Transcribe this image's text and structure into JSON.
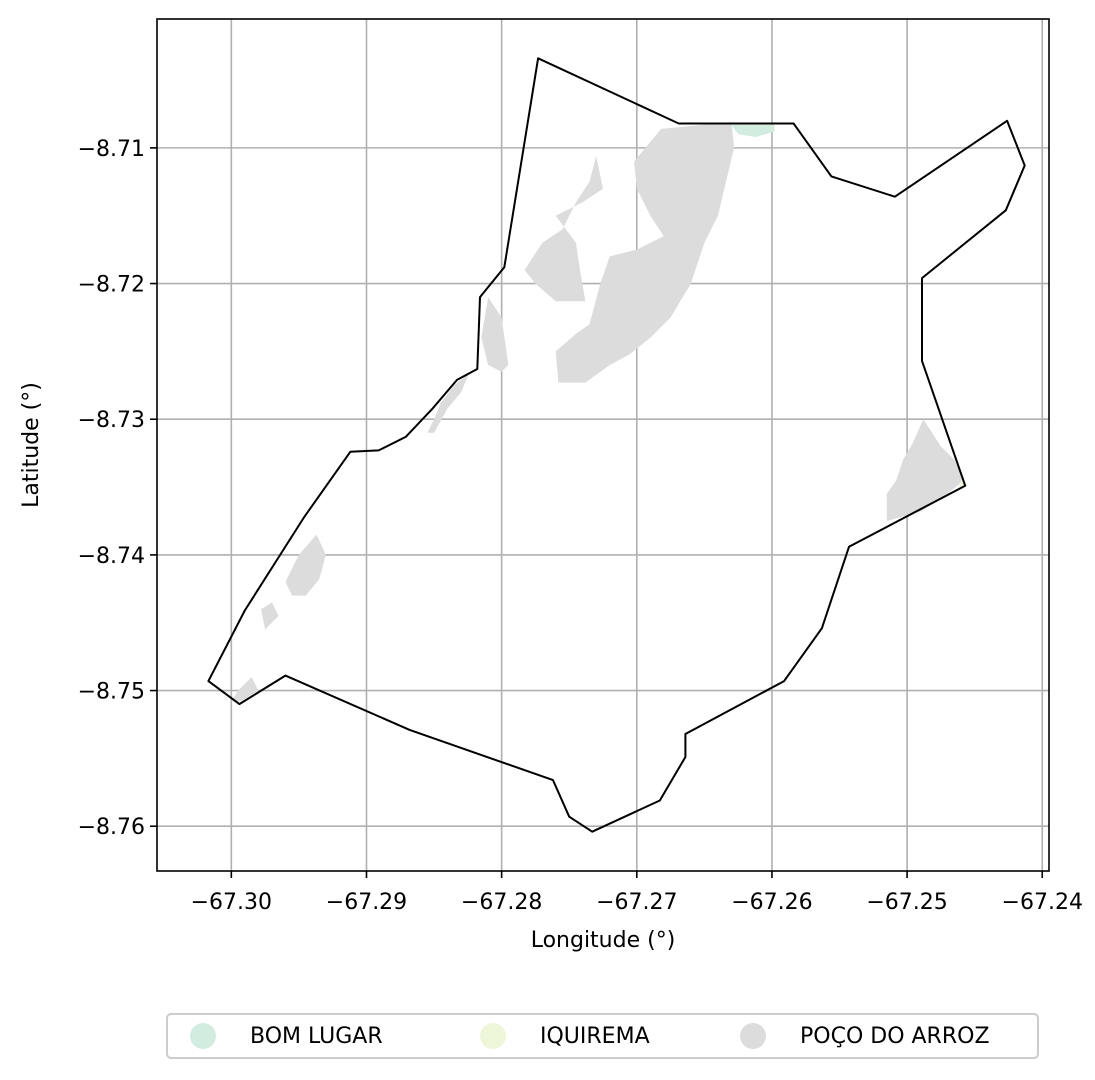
{
  "chart_data": {
    "type": "map",
    "xlabel": "Longitude (°)",
    "ylabel": "Latitude (°)",
    "xlim": [
      -67.3055,
      -67.2395
    ],
    "ylim": [
      -8.7633,
      -8.7005
    ],
    "xticks": [
      -67.3,
      -67.29,
      -67.28,
      -67.27,
      -67.26,
      -67.25,
      -67.24
    ],
    "xtick_labels": [
      "−67.30",
      "−67.29",
      "−67.28",
      "−67.27",
      "−67.26",
      "−67.25",
      "−67.24"
    ],
    "yticks": [
      -8.71,
      -8.72,
      -8.73,
      -8.74,
      -8.75,
      -8.76
    ],
    "ytick_labels": [
      "−8.71",
      "−8.72",
      "−8.73",
      "−8.74",
      "−8.75",
      "−8.76"
    ],
    "grid": true,
    "legend_position": "bottom-center",
    "legend": [
      {
        "label": "BOM LUGAR",
        "color": "#d2ece0"
      },
      {
        "label": "IQUIREMA",
        "color": "#eef6da"
      },
      {
        "label": "POÇO DO ARROZ",
        "color": "#dcdcdc"
      }
    ],
    "boundary_color": "#000000",
    "boundary": [
      [
        -67.2773,
        -8.7034
      ],
      [
        -67.2669,
        -8.7082
      ],
      [
        -67.2584,
        -8.7082
      ],
      [
        -67.2556,
        -8.7121
      ],
      [
        -67.2509,
        -8.7136
      ],
      [
        -67.2426,
        -8.708
      ],
      [
        -67.2413,
        -8.7113
      ],
      [
        -67.2427,
        -8.7146
      ],
      [
        -67.2489,
        -8.7196
      ],
      [
        -67.2489,
        -8.7257
      ],
      [
        -67.2457,
        -8.7349
      ],
      [
        -67.2543,
        -8.7394
      ],
      [
        -67.2563,
        -8.7454
      ],
      [
        -67.2591,
        -8.7493
      ],
      [
        -67.2664,
        -8.7532
      ],
      [
        -67.2664,
        -8.7549
      ],
      [
        -67.2683,
        -8.7581
      ],
      [
        -67.2733,
        -8.7604
      ],
      [
        -67.275,
        -8.7593
      ],
      [
        -67.2762,
        -8.7566
      ],
      [
        -67.2868,
        -8.7529
      ],
      [
        -67.296,
        -8.7489
      ],
      [
        -67.2994,
        -8.751
      ],
      [
        -67.3017,
        -8.7493
      ],
      [
        -67.299,
        -8.7441
      ],
      [
        -67.2946,
        -8.7372
      ],
      [
        -67.2912,
        -8.7324
      ],
      [
        -67.2891,
        -8.7323
      ],
      [
        -67.2871,
        -8.7313
      ],
      [
        -67.2851,
        -8.7292
      ],
      [
        -67.2833,
        -8.7271
      ],
      [
        -67.2818,
        -8.7263
      ],
      [
        -67.2816,
        -8.721
      ],
      [
        -67.2798,
        -8.7188
      ],
      [
        -67.2773,
        -8.7034
      ]
    ],
    "regions": [
      {
        "name": "POÇO DO ARROZ",
        "color": "#dcdcdc",
        "polygons": [
          [
            [
              -67.2682,
              -8.7086
            ],
            [
              -67.263,
              -8.7081
            ],
            [
              -67.2628,
              -8.71
            ],
            [
              -67.264,
              -8.715
            ],
            [
              -67.265,
              -8.717
            ],
            [
              -67.266,
              -8.72
            ],
            [
              -67.2675,
              -8.7225
            ],
            [
              -67.269,
              -8.724
            ],
            [
              -67.2705,
              -8.7252
            ],
            [
              -67.272,
              -8.726
            ],
            [
              -67.2738,
              -8.7273
            ],
            [
              -67.2758,
              -8.7273
            ],
            [
              -67.276,
              -8.725
            ],
            [
              -67.2745,
              -8.7237
            ],
            [
              -67.2735,
              -8.723
            ],
            [
              -67.2727,
              -8.72
            ],
            [
              -67.272,
              -8.718
            ],
            [
              -67.27,
              -8.7175
            ],
            [
              -67.268,
              -8.7165
            ],
            [
              -67.269,
              -8.715
            ],
            [
              -67.27,
              -8.713
            ],
            [
              -67.2702,
              -8.711
            ]
          ],
          [
            [
              -67.273,
              -8.7106
            ],
            [
              -67.2725,
              -8.713
            ],
            [
              -67.274,
              -8.714
            ],
            [
              -67.276,
              -8.715
            ],
            [
              -67.2745,
              -8.717
            ],
            [
              -67.2742,
              -8.719
            ],
            [
              -67.2738,
              -8.7213
            ],
            [
              -67.276,
              -8.7213
            ],
            [
              -67.2775,
              -8.72
            ],
            [
              -67.2783,
              -8.719
            ],
            [
              -67.277,
              -8.717
            ],
            [
              -67.2755,
              -8.716
            ],
            [
              -67.2745,
              -8.714
            ],
            [
              -67.2735,
              -8.7125
            ]
          ],
          [
            [
              -67.281,
              -8.721
            ],
            [
              -67.28,
              -8.7225
            ],
            [
              -67.2795,
              -8.726
            ],
            [
              -67.28,
              -8.7265
            ],
            [
              -67.281,
              -8.726
            ],
            [
              -67.2815,
              -8.724
            ]
          ],
          [
            [
              -67.2824,
              -8.7266
            ],
            [
              -67.2835,
              -8.7275
            ],
            [
              -67.2845,
              -8.7288
            ],
            [
              -67.285,
              -8.73
            ],
            [
              -67.2855,
              -8.731
            ],
            [
              -67.285,
              -8.731
            ],
            [
              -67.284,
              -8.7292
            ],
            [
              -67.283,
              -8.728
            ]
          ],
          [
            [
              -67.2475,
              -8.732
            ],
            [
              -67.2488,
              -8.73
            ],
            [
              -67.2496,
              -8.7318
            ],
            [
              -67.2503,
              -8.733
            ],
            [
              -67.2508,
              -8.7345
            ],
            [
              -67.2515,
              -8.7355
            ],
            [
              -67.2515,
              -8.7375
            ],
            [
              -67.249,
              -8.7368
            ],
            [
              -67.247,
              -8.7355
            ],
            [
              -67.2458,
              -8.7345
            ],
            [
              -67.2465,
              -8.733
            ]
          ],
          [
            [
              -67.2937,
              -8.7385
            ],
            [
              -67.295,
              -8.74
            ],
            [
              -67.296,
              -8.742
            ],
            [
              -67.2955,
              -8.743
            ],
            [
              -67.2945,
              -8.743
            ],
            [
              -67.2935,
              -8.7418
            ],
            [
              -67.293,
              -8.74
            ]
          ],
          [
            [
              -67.297,
              -8.7435
            ],
            [
              -67.2965,
              -8.7445
            ],
            [
              -67.2975,
              -8.7455
            ],
            [
              -67.2978,
              -8.744
            ]
          ],
          [
            [
              -67.2985,
              -8.749
            ],
            [
              -67.2995,
              -8.75
            ],
            [
              -67.3,
              -8.7508
            ],
            [
              -67.2993,
              -8.7508
            ],
            [
              -67.298,
              -8.75
            ]
          ]
        ]
      },
      {
        "name": "BOM LUGAR",
        "color": "#d2ece0",
        "polygons": [
          [
            [
              -67.263,
              -8.7083
            ],
            [
              -67.2598,
              -8.7083
            ],
            [
              -67.2598,
              -8.7088
            ],
            [
              -67.2612,
              -8.7092
            ],
            [
              -67.2625,
              -8.709
            ]
          ]
        ]
      },
      {
        "name": "IQUIREMA",
        "color": "#eef6da",
        "polygons": [
          [
            [
              -67.2459,
              -8.7343
            ],
            [
              -67.2455,
              -8.7349
            ],
            [
              -67.2462,
              -8.7351
            ]
          ]
        ]
      }
    ]
  }
}
